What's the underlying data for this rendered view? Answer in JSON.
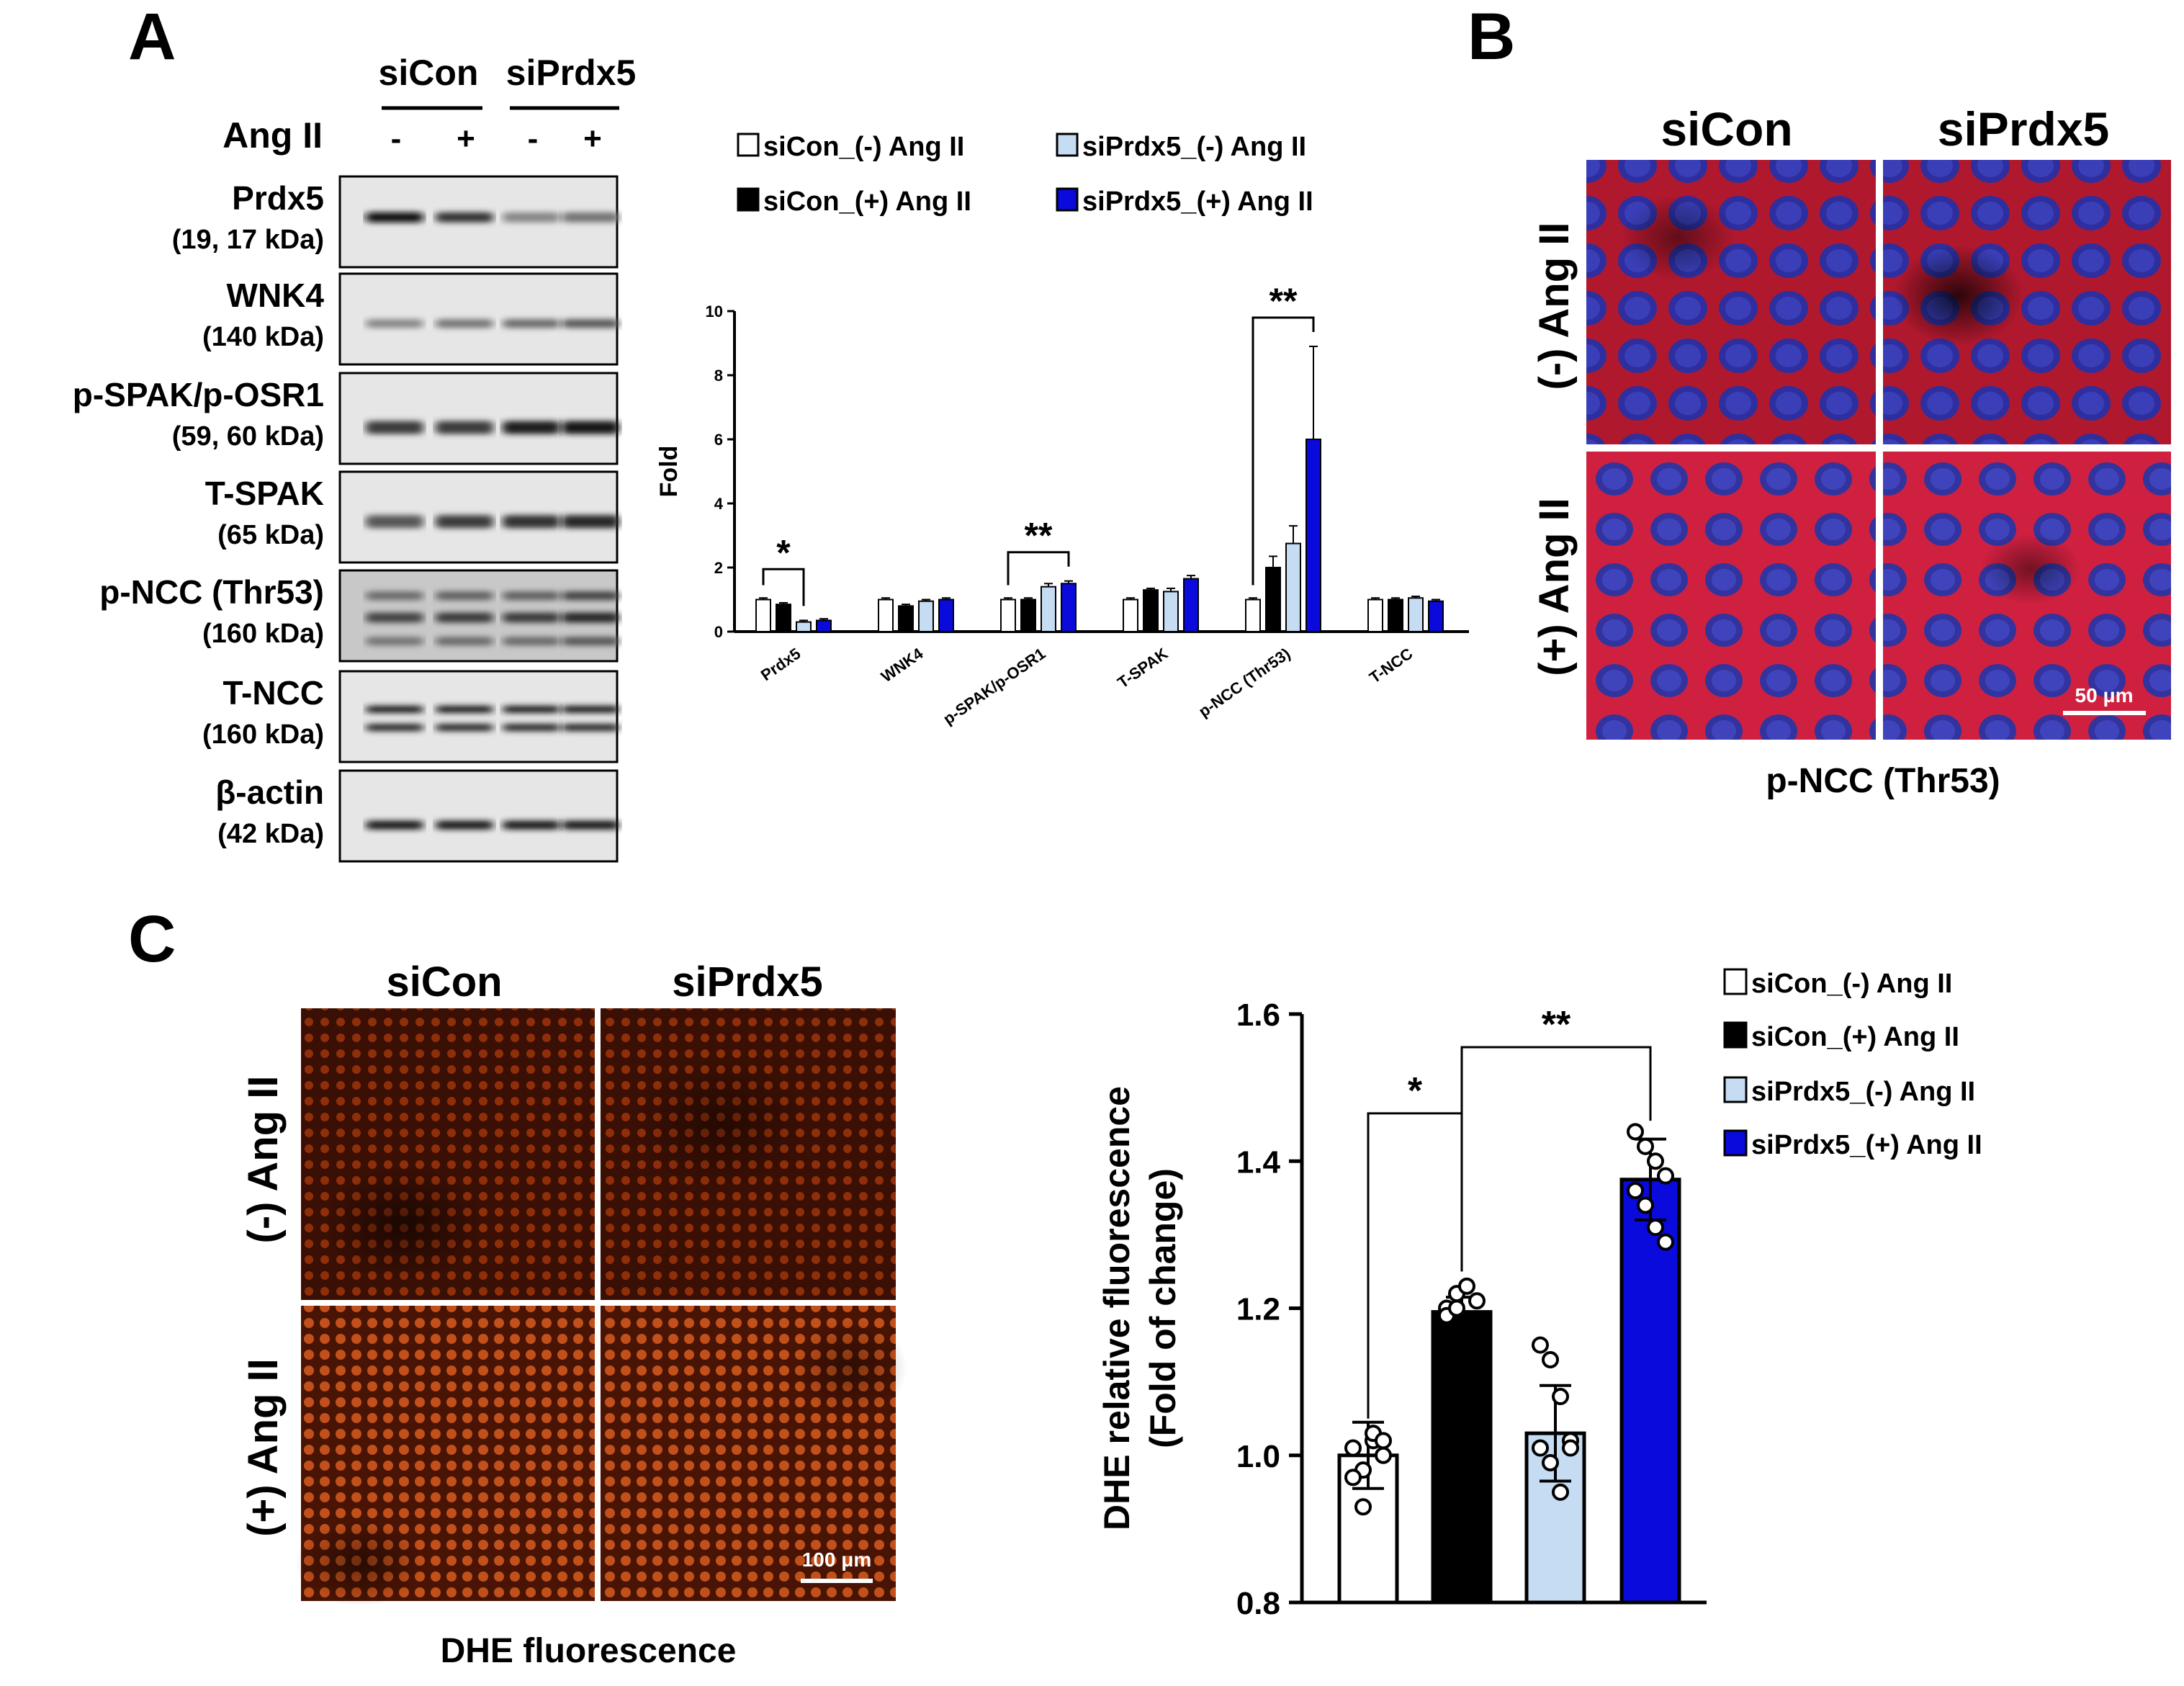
{
  "panels": {
    "a": "A",
    "b": "B",
    "c": "C"
  },
  "western_blot": {
    "group_labels": [
      "siCon",
      "siPrdx5"
    ],
    "treatment_label": "Ang II",
    "lane_signs": [
      "-",
      "+",
      "-",
      "+"
    ],
    "bands": [
      {
        "name": "Prdx5",
        "kda": "(19, 17 kDa)"
      },
      {
        "name": "WNK4",
        "kda": "(140 kDa)"
      },
      {
        "name": "p-SPAK/p-OSR1",
        "kda": "(59, 60 kDa)"
      },
      {
        "name": "T-SPAK",
        "kda": "(65 kDa)"
      },
      {
        "name": "p-NCC (Thr53)",
        "kda": "(160 kDa)"
      },
      {
        "name": "T-NCC",
        "kda": "(160 kDa)"
      },
      {
        "name": "β-actin",
        "kda": "(42 kDa)"
      }
    ]
  },
  "colors": {
    "siCon_minus": "#ffffff",
    "siCon_plus": "#000000",
    "siPrdx5_minus": "#c6dcf2",
    "siPrdx5_plus": "#0a0adc",
    "immuno_red": "#c81e3c",
    "immuno_blue": "#2832b4",
    "dhe_orange": "#b4400f"
  },
  "legend": {
    "siCon_minus": "siCon_(-) Ang II",
    "siCon_plus": "siCon_(+) Ang II",
    "siPrdx5_minus": "siPrdx5_(-) Ang II",
    "siPrdx5_plus": "siPrdx5_(+) Ang II"
  },
  "chart_data": [
    {
      "type": "bar",
      "title": "",
      "xlabel": "",
      "ylabel": "Fold",
      "ylim": [
        0,
        10
      ],
      "yticks": [
        "0",
        "2",
        "4",
        "6",
        "8",
        "10"
      ],
      "categories": [
        "Prdx5",
        "WNK4",
        "p-SPAK/p-OSR1",
        "T-SPAK",
        "p-NCC (Thr53)",
        "T-NCC"
      ],
      "series": [
        {
          "name": "siCon_(-) Ang II",
          "values": [
            1.0,
            1.0,
            1.0,
            1.0,
            1.0,
            1.0
          ],
          "errors": [
            0.05,
            0.05,
            0.05,
            0.05,
            0.05,
            0.05
          ]
        },
        {
          "name": "siCon_(+) Ang II",
          "values": [
            0.85,
            0.8,
            1.0,
            1.3,
            2.0,
            1.0
          ],
          "errors": [
            0.05,
            0.05,
            0.05,
            0.05,
            0.35,
            0.05
          ]
        },
        {
          "name": "siPrdx5_(-) Ang II",
          "values": [
            0.3,
            0.95,
            1.4,
            1.25,
            2.75,
            1.05
          ],
          "errors": [
            0.05,
            0.05,
            0.1,
            0.1,
            0.55,
            0.05
          ]
        },
        {
          "name": "siPrdx5_(+) Ang II",
          "values": [
            0.35,
            1.0,
            1.5,
            1.65,
            6.0,
            0.95
          ],
          "errors": [
            0.05,
            0.05,
            0.08,
            0.1,
            2.9,
            0.05
          ]
        }
      ],
      "significance": [
        {
          "category": "Prdx5",
          "from": 0,
          "to": 2,
          "label": "*"
        },
        {
          "category": "p-SPAK/p-OSR1",
          "from": 0,
          "to": 3,
          "label": "**"
        },
        {
          "category": "p-NCC (Thr53)",
          "from": 0,
          "to": 3,
          "label": "**"
        }
      ],
      "grid": false,
      "legend_placement": "top"
    },
    {
      "type": "bar",
      "title": "",
      "xlabel": "",
      "ylabel": "DHE relative fluorescence\n(Fold of change)",
      "ylabel_lines": [
        "DHE relative fluorescence",
        "(Fold of change)"
      ],
      "ylim": [
        0.8,
        1.6
      ],
      "yticks": [
        "0.8",
        "1.0",
        "1.2",
        "1.4",
        "1.6"
      ],
      "categories": [
        "siCon_(-) Ang II",
        "siCon_(+) Ang II",
        "siPrdx5_(-) Ang II",
        "siPrdx5_(+) Ang II"
      ],
      "values": [
        1.0,
        1.195,
        1.03,
        1.375
      ],
      "errors": [
        0.045,
        0.02,
        0.065,
        0.055
      ],
      "points": [
        [
          1.01,
          0.98,
          1.02,
          1.0,
          0.97,
          0.93,
          1.03,
          1.02
        ],
        [
          1.2,
          1.22,
          1.23,
          1.21,
          1.19,
          1.2
        ],
        [
          1.15,
          1.13,
          1.08,
          1.02,
          1.01,
          0.99,
          0.95,
          1.01
        ],
        [
          1.44,
          1.42,
          1.4,
          1.38,
          1.36,
          1.34,
          1.31,
          1.29
        ]
      ],
      "significance": [
        {
          "from": 0,
          "to": 1,
          "label": "*"
        },
        {
          "from": 1,
          "to": 3,
          "label": "**"
        }
      ],
      "grid": false,
      "legend_placement": "right"
    }
  ],
  "immunofluorescence": {
    "columns": [
      "siCon",
      "siPrdx5"
    ],
    "rows": [
      "(-) Ang II",
      "(+) Ang II"
    ],
    "scale_bar": "50 μm",
    "caption": "p-NCC (Thr53)"
  },
  "dhe_images": {
    "columns": [
      "siCon",
      "siPrdx5"
    ],
    "rows": [
      "(-) Ang II",
      "(+) Ang II"
    ],
    "scale_bar": "100 μm",
    "caption": "DHE fluorescence"
  }
}
